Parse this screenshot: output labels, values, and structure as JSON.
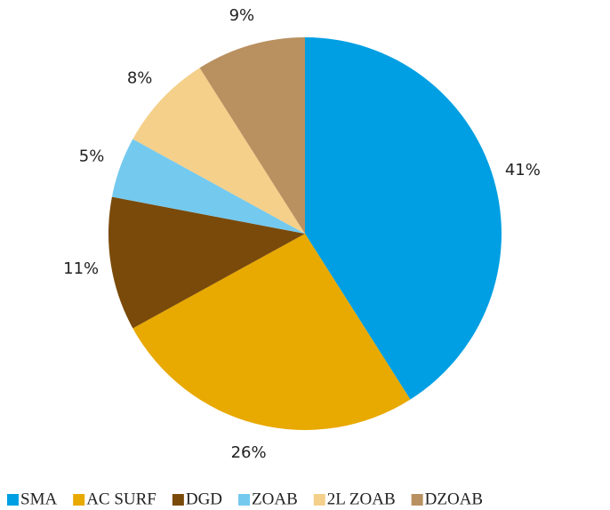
{
  "chart_data": {
    "type": "pie",
    "categories": [
      "SMA",
      "AC SURF",
      "DGD",
      "ZOAB",
      "2L ZOAB",
      "DZOAB"
    ],
    "values": [
      41,
      26,
      11,
      5,
      8,
      9
    ],
    "value_labels": [
      "41%",
      "26%",
      "11%",
      "5%",
      "8%",
      "9%"
    ],
    "colors": [
      "#009fe3",
      "#e8a900",
      "#7a4a0a",
      "#74c9ef",
      "#f4d08a",
      "#b99060"
    ],
    "legend": "bottom"
  }
}
